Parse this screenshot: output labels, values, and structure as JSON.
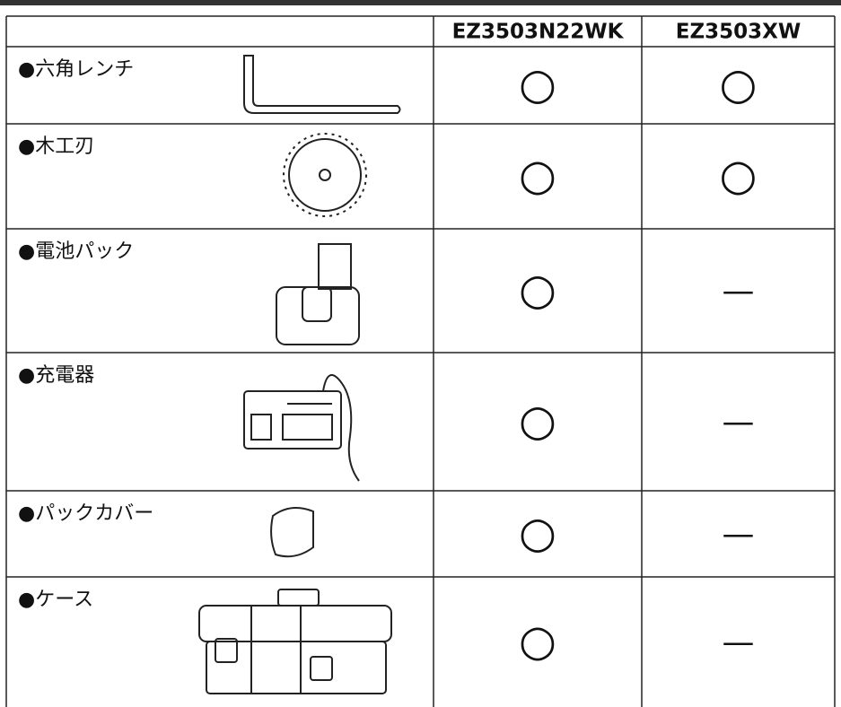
{
  "table": {
    "header": [
      "EZ3503N22WK",
      "EZ3503XW"
    ],
    "rows": [
      {
        "item": "●六角レンチ",
        "cells": [
          "○",
          "○"
        ]
      },
      {
        "item": "●木工刃",
        "cells": [
          "○",
          "○"
        ]
      },
      {
        "item": "●電池パック",
        "cells": [
          "○",
          "—"
        ]
      },
      {
        "item": "●充電器",
        "cells": [
          "○",
          "—"
        ]
      },
      {
        "item": "●パックカバー",
        "cells": [
          "○",
          "—"
        ]
      },
      {
        "item": "●ケース",
        "cells": [
          "○",
          "—"
        ]
      }
    ]
  }
}
